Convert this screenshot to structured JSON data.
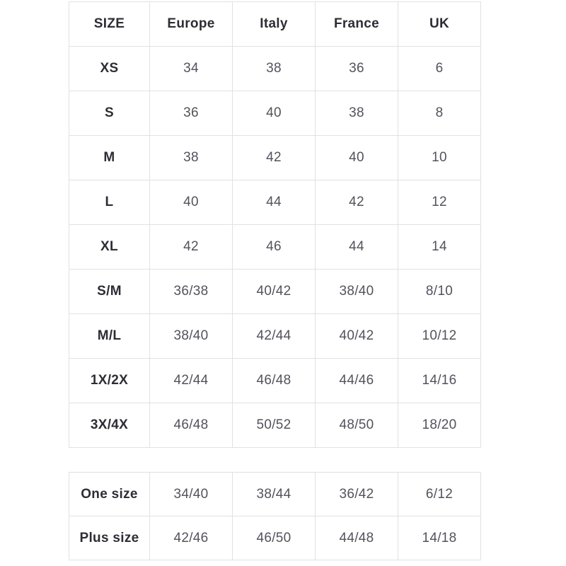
{
  "colors": {
    "background": "#ffffff",
    "border": "#e1e1e4",
    "label_text": "#2d2d35",
    "value_text": "#52535c"
  },
  "size_chart": {
    "columns": [
      "SIZE",
      "Europe",
      "Italy",
      "France",
      "UK"
    ],
    "rows": [
      {
        "label": "XS",
        "values": [
          "34",
          "38",
          "36",
          "6"
        ]
      },
      {
        "label": "S",
        "values": [
          "36",
          "40",
          "38",
          "8"
        ]
      },
      {
        "label": "M",
        "values": [
          "38",
          "42",
          "40",
          "10"
        ]
      },
      {
        "label": "L",
        "values": [
          "40",
          "44",
          "42",
          "12"
        ]
      },
      {
        "label": "XL",
        "values": [
          "42",
          "46",
          "44",
          "14"
        ]
      },
      {
        "label": "S/M",
        "values": [
          "36/38",
          "40/42",
          "38/40",
          "8/10"
        ]
      },
      {
        "label": "M/L",
        "values": [
          "38/40",
          "42/44",
          "40/42",
          "10/12"
        ]
      },
      {
        "label": "1X/2X",
        "values": [
          "42/44",
          "46/48",
          "44/46",
          "14/16"
        ]
      },
      {
        "label": "3X/4X",
        "values": [
          "46/48",
          "50/52",
          "48/50",
          "18/20"
        ]
      }
    ]
  },
  "special_sizes": {
    "rows": [
      {
        "label": "One size",
        "values": [
          "34/40",
          "38/44",
          "36/42",
          "6/12"
        ]
      },
      {
        "label": "Plus size",
        "values": [
          "42/46",
          "46/50",
          "44/48",
          "14/18"
        ]
      }
    ]
  }
}
